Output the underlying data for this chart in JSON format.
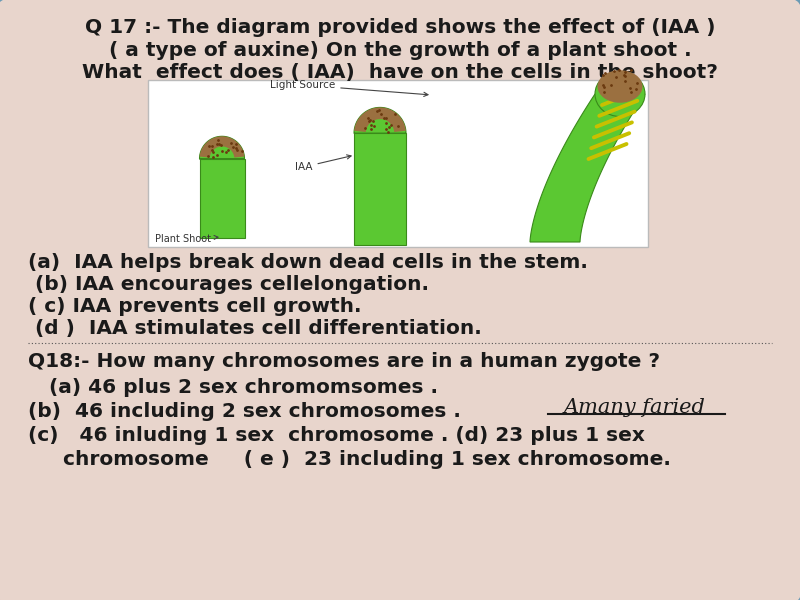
{
  "bg_color": "#e8d5cc",
  "border_color": "#6a9bb5",
  "title_lines": [
    "Q 17 :- The diagram provided shows the effect of (IAA )",
    "( a type of auxine) On the growth of a plant shoot .",
    "What  effect does ( IAA)  have on the cells in the shoot?"
  ],
  "options_q17": [
    "(a)  IAA helps break down dead cells in the stem.",
    " (b) IAA encourages cellelongation.",
    "( c) IAA prevents cell growth.",
    " (d )  IAA stimulates cell differentiation."
  ],
  "q18_title": "Q18:- How many chromosomes are in a human zygote ?",
  "options_q18_line1": "   (a) 46 plus 2 sex chromomsomes .",
  "options_q18_line2": "(b)  46 including 2 sex chromosomes .",
  "options_q18_line3": "(c)   46 inluding 1 sex  chromosome . (d) 23 plus 1 sex",
  "options_q18_line4": "     chromosome     ( e )  23 including 1 sex chromosome.",
  "watermark": "Amany faried",
  "title_fontsize": 14.5,
  "options_fontsize": 14.5,
  "q18_fontsize": 14.5
}
